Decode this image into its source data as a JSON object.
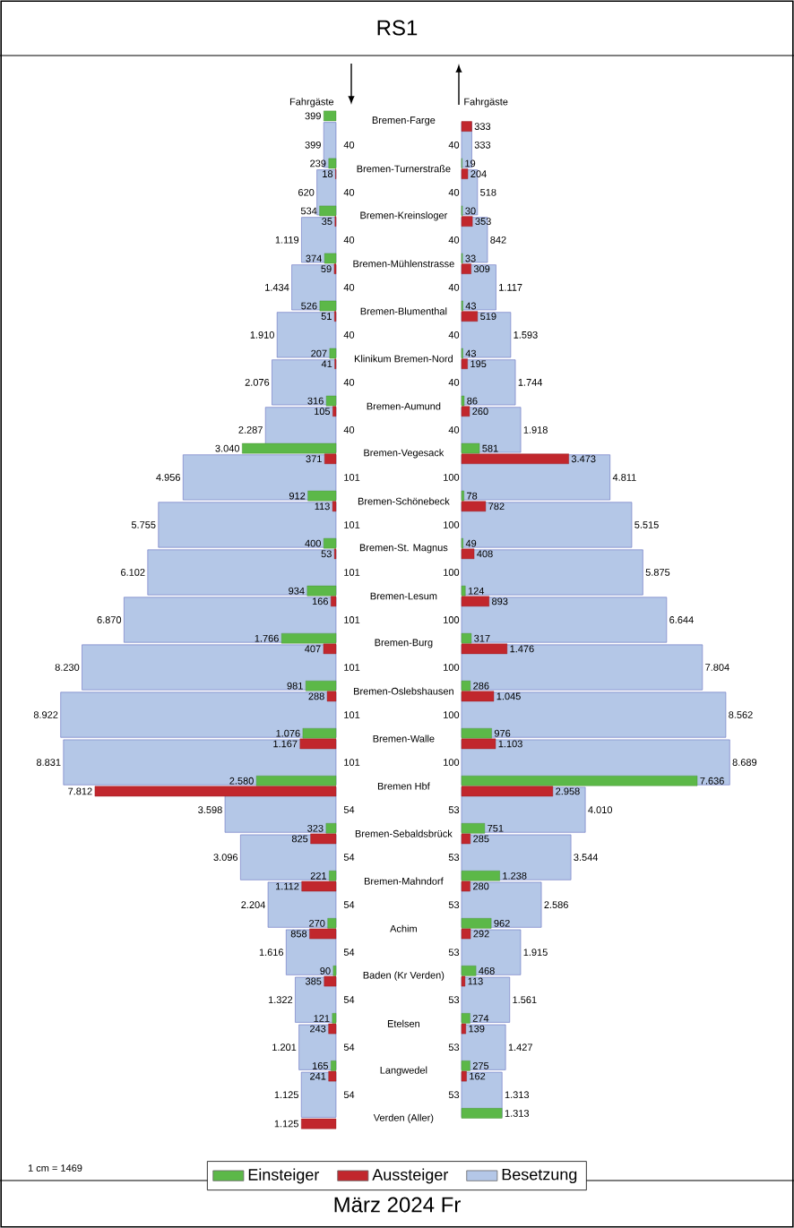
{
  "chart_data": [
    {
      "type": "bar",
      "orientation": "horizontal",
      "title": "RS1",
      "xlabel": "Fahrgäste",
      "xlim": [
        9000,
        0
      ],
      "tick_labels": "y",
      "legend": "bottom",
      "annotations": [
        "1 cm = 1469",
        "März 2024 Fr"
      ],
      "categories": [
        "Bremen-Farge",
        "40",
        "Bremen-Turnerstraße",
        "40",
        "Bremen-Kreinsloger",
        "40",
        "Bremen-Mühlenstrasse",
        "40",
        "Bremen-Blumenthal",
        "40",
        "Klinikum Bremen-Nord",
        "40",
        "Bremen-Aumund",
        "40",
        "Bremen-Vegesack",
        "101",
        "Bremen-Schönebeck",
        "101",
        "Bremen-St. Magnus",
        "101",
        "Bremen-Lesum",
        "101",
        "Bremen-Burg",
        "101",
        "Bremen-Oslebshausen",
        "101",
        "Bremen-Walle",
        "101",
        "Bremen Hbf",
        "54",
        "Bremen-Sebaldsbrück",
        "54",
        "Bremen-Mahndorf",
        "54",
        "Achim",
        "54",
        "Baden (Kr Verden)",
        "54",
        "Etelsen",
        "54",
        "Langwedel",
        "54",
        "Verden (Aller)"
      ],
      "series": [
        {
          "name": "Einsteiger",
          "color": "#5cb848",
          "values": [
            399,
            null,
            239,
            null,
            534,
            null,
            374,
            null,
            526,
            null,
            207,
            null,
            316,
            null,
            3040,
            null,
            912,
            null,
            400,
            null,
            934,
            null,
            1766,
            null,
            981,
            null,
            1076,
            null,
            2580,
            null,
            323,
            null,
            221,
            null,
            270,
            null,
            90,
            null,
            121,
            null,
            165,
            null,
            null
          ],
          "value_labels": [
            "399",
            null,
            "239",
            null,
            "534",
            null,
            "374",
            null,
            "526",
            null,
            "207",
            null,
            "316",
            null,
            "3.040",
            null,
            "912",
            null,
            "400",
            null,
            "934",
            null,
            "1.766",
            null,
            "981",
            null,
            "1.076",
            null,
            "2.580",
            null,
            "323",
            null,
            "221",
            null,
            "270",
            null,
            "90",
            null,
            "121",
            null,
            "165",
            null,
            null
          ]
        },
        {
          "name": "Aussteiger",
          "color": "#c1272d",
          "values": [
            null,
            null,
            18,
            null,
            35,
            null,
            59,
            null,
            51,
            null,
            41,
            null,
            105,
            null,
            371,
            null,
            113,
            null,
            53,
            null,
            166,
            null,
            407,
            null,
            288,
            null,
            1167,
            null,
            7812,
            null,
            825,
            null,
            1112,
            null,
            858,
            null,
            385,
            null,
            243,
            null,
            241,
            null,
            1125
          ],
          "value_labels": [
            null,
            null,
            "18",
            null,
            "35",
            null,
            "59",
            null,
            "51",
            null,
            "41",
            null,
            "105",
            null,
            "371",
            null,
            "113",
            null,
            "53",
            null,
            "166",
            null,
            "407",
            null,
            "288",
            null,
            "1.167",
            null,
            "7.812",
            null,
            "825",
            null,
            "1.112",
            null,
            "858",
            null,
            "385",
            null,
            "243",
            null,
            "241",
            null,
            "1.125"
          ]
        },
        {
          "name": "Besetzung",
          "color": "#b4c7e7",
          "values": [
            null,
            399,
            null,
            620,
            null,
            1119,
            null,
            1434,
            null,
            1910,
            null,
            2076,
            null,
            2287,
            null,
            4956,
            null,
            5755,
            null,
            6102,
            null,
            6870,
            null,
            8230,
            null,
            8922,
            null,
            8831,
            null,
            3598,
            null,
            3096,
            null,
            2204,
            null,
            1616,
            null,
            1322,
            null,
            1201,
            null,
            1125,
            null
          ],
          "value_labels": [
            null,
            "399",
            null,
            "620",
            null,
            "1.119",
            null,
            "1.434",
            null,
            "1.910",
            null,
            "2.076",
            null,
            "2.287",
            null,
            "4.956",
            null,
            "5.755",
            null,
            "6.102",
            null,
            "6.870",
            null,
            "8.230",
            null,
            "8.922",
            null,
            "8.831",
            null,
            "3.598",
            null,
            "3.096",
            null,
            "2.204",
            null,
            "1.616",
            null,
            "1.322",
            null,
            "1.201",
            null,
            "1.125",
            null
          ]
        }
      ]
    },
    {
      "type": "bar",
      "orientation": "horizontal",
      "xlabel": "Fahrgäste",
      "xlim": [
        0,
        8689
      ],
      "tick_labels": "y",
      "categories": [
        null,
        "40",
        null,
        "40",
        null,
        "40",
        null,
        "40",
        null,
        "40",
        null,
        "40",
        null,
        "40",
        null,
        "100",
        null,
        "100",
        null,
        "100",
        null,
        "100",
        null,
        "100",
        null,
        "100",
        null,
        "100",
        null,
        "53",
        null,
        "53",
        null,
        "53",
        null,
        "53",
        null,
        "53",
        null,
        "53",
        null,
        "53",
        null
      ],
      "series": [
        {
          "color": "#5cb848",
          "values": [
            null,
            null,
            19,
            null,
            30,
            null,
            33,
            null,
            43,
            null,
            43,
            null,
            86,
            null,
            581,
            null,
            78,
            null,
            49,
            null,
            124,
            null,
            317,
            null,
            286,
            null,
            976,
            null,
            7636,
            null,
            751,
            null,
            1238,
            null,
            962,
            null,
            468,
            null,
            274,
            null,
            275,
            null,
            1313
          ],
          "value_labels": [
            null,
            null,
            "19",
            null,
            "30",
            null,
            "33",
            null,
            "43",
            null,
            "43",
            null,
            "86",
            null,
            "581",
            null,
            "78",
            null,
            "49",
            null,
            "124",
            null,
            "317",
            null,
            "286",
            null,
            "976",
            null,
            "7.636",
            null,
            "751",
            null,
            "1.238",
            null,
            "962",
            null,
            "468",
            null,
            "274",
            null,
            "275",
            null,
            "1.313"
          ]
        },
        {
          "color": "#c1272d",
          "values": [
            333,
            null,
            204,
            null,
            353,
            null,
            309,
            null,
            519,
            null,
            195,
            null,
            260,
            null,
            3473,
            null,
            782,
            null,
            408,
            null,
            893,
            null,
            1476,
            null,
            1045,
            null,
            1103,
            null,
            2958,
            null,
            285,
            null,
            280,
            null,
            292,
            null,
            113,
            null,
            139,
            null,
            162,
            null,
            null
          ],
          "value_labels": [
            "333",
            null,
            "204",
            null,
            "353",
            null,
            "309",
            null,
            "519",
            null,
            "195",
            null,
            "260",
            null,
            "3.473",
            null,
            "782",
            null,
            "408",
            null,
            "893",
            null,
            "1.476",
            null,
            "1.045",
            null,
            "1.103",
            null,
            "2.958",
            null,
            "285",
            null,
            "280",
            null,
            "292",
            null,
            "113",
            null,
            "139",
            null,
            "162",
            null,
            null
          ]
        },
        {
          "color": "#b4c7e7",
          "values": [
            null,
            333,
            null,
            518,
            null,
            842,
            null,
            1117,
            null,
            1593,
            null,
            1744,
            null,
            1918,
            null,
            4811,
            null,
            5515,
            null,
            5875,
            null,
            6644,
            null,
            7804,
            null,
            8562,
            null,
            8689,
            null,
            4010,
            null,
            3544,
            null,
            2586,
            null,
            1915,
            null,
            1561,
            null,
            1427,
            null,
            1313,
            null
          ],
          "value_labels": [
            null,
            "333",
            null,
            "518",
            null,
            "842",
            null,
            "1.117",
            null,
            "1.593",
            null,
            "1.744",
            null,
            "1.918",
            null,
            "4.811",
            null,
            "5.515",
            null,
            "5.875",
            null,
            "6.644",
            null,
            "7.804",
            null,
            "8.562",
            null,
            "8.689",
            null,
            "4.010",
            null,
            "3.544",
            null,
            "2.586",
            null,
            "1.915",
            null,
            "1.561",
            null,
            "1.427",
            null,
            "1.313",
            null
          ]
        }
      ]
    }
  ]
}
